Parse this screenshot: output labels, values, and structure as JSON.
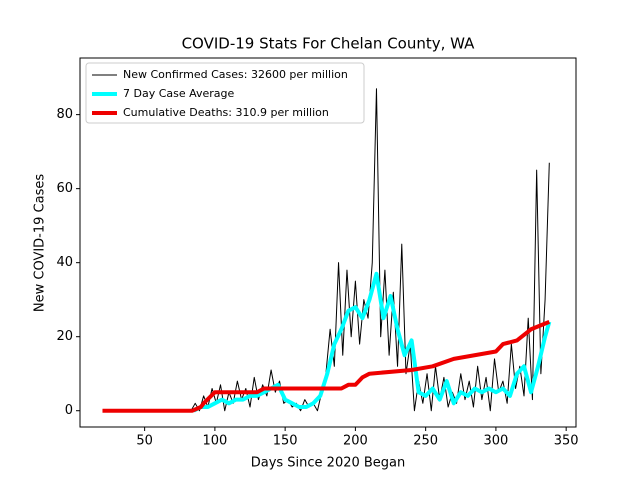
{
  "chart_data": {
    "type": "line",
    "title": "COVID-19 Stats For Chelan County, WA",
    "xlabel": "Days Since 2020 Began",
    "ylabel": "New COVID-19 Cases",
    "xlim": [
      4,
      357
    ],
    "ylim": [
      -4.4,
      95.3
    ],
    "xticks": [
      50,
      100,
      150,
      200,
      250,
      300,
      350
    ],
    "yticks": [
      0,
      20,
      40,
      60,
      80
    ],
    "legend": "upper left",
    "series": [
      {
        "name": "New Confirmed Cases: 32600 per million",
        "color": "#000000",
        "width": 1,
        "x": [
          20,
          80,
          83,
          86,
          89,
          92,
          95,
          98,
          101,
          104,
          107,
          110,
          113,
          116,
          119,
          122,
          125,
          128,
          131,
          134,
          137,
          140,
          143,
          146,
          149,
          152,
          155,
          158,
          161,
          164,
          167,
          170,
          173,
          176,
          179,
          182,
          185,
          188,
          191,
          194,
          197,
          200,
          203,
          206,
          209,
          212,
          215,
          218,
          221,
          224,
          227,
          230,
          233,
          236,
          239,
          242,
          245,
          248,
          251,
          254,
          257,
          260,
          263,
          266,
          269,
          272,
          275,
          278,
          281,
          284,
          287,
          290,
          293,
          296,
          299,
          302,
          305,
          308,
          311,
          314,
          317,
          320,
          323,
          326,
          329,
          332,
          335,
          338
        ],
        "values": [
          0,
          0,
          0,
          2,
          0,
          4,
          1,
          6,
          2,
          7,
          0,
          5,
          2,
          8,
          3,
          6,
          1,
          9,
          3,
          7,
          4,
          11,
          5,
          8,
          2,
          3,
          1,
          2,
          0,
          3,
          1,
          2,
          0,
          5,
          10,
          22,
          12,
          40,
          15,
          38,
          20,
          35,
          18,
          30,
          25,
          40,
          87,
          20,
          38,
          15,
          32,
          12,
          45,
          10,
          18,
          0,
          8,
          2,
          10,
          0,
          12,
          3,
          9,
          1,
          5,
          2,
          10,
          3,
          8,
          1,
          12,
          3,
          9,
          0,
          14,
          5,
          8,
          2,
          18,
          6,
          12,
          4,
          25,
          3,
          65,
          10,
          30,
          67
        ]
      },
      {
        "name": "7 Day Case Average",
        "color": "#00ffff",
        "width": 4,
        "x": [
          85,
          90,
          95,
          100,
          105,
          110,
          115,
          120,
          125,
          130,
          135,
          140,
          145,
          150,
          155,
          160,
          165,
          170,
          175,
          180,
          185,
          190,
          195,
          200,
          205,
          210,
          215,
          220,
          225,
          230,
          235,
          240,
          245,
          250,
          255,
          260,
          265,
          270,
          275,
          280,
          285,
          290,
          295,
          300,
          305,
          310,
          315,
          320,
          325,
          330,
          335,
          338
        ],
        "values": [
          0,
          1,
          1,
          2,
          3,
          2,
          3,
          3,
          4,
          4,
          5,
          6,
          7,
          3,
          2,
          1,
          1,
          2,
          4,
          10,
          18,
          22,
          27,
          28,
          25,
          30,
          37,
          25,
          31,
          22,
          15,
          19,
          5,
          4,
          6,
          3,
          8,
          2,
          5,
          4,
          6,
          5,
          6,
          5,
          6,
          4,
          10,
          12,
          5,
          12,
          20,
          24
        ]
      },
      {
        "name": "Cumulative Deaths: 310.9 per million",
        "color": "#ee0000",
        "width": 4,
        "x": [
          20,
          84,
          90,
          92,
          100,
          130,
          135,
          190,
          195,
          200,
          205,
          210,
          240,
          255,
          270,
          300,
          305,
          315,
          325,
          338
        ],
        "values": [
          0,
          0,
          1,
          2,
          5,
          5,
          6,
          6,
          7,
          7,
          9,
          10,
          11,
          12,
          14,
          16,
          18,
          19,
          22,
          24
        ]
      }
    ]
  }
}
